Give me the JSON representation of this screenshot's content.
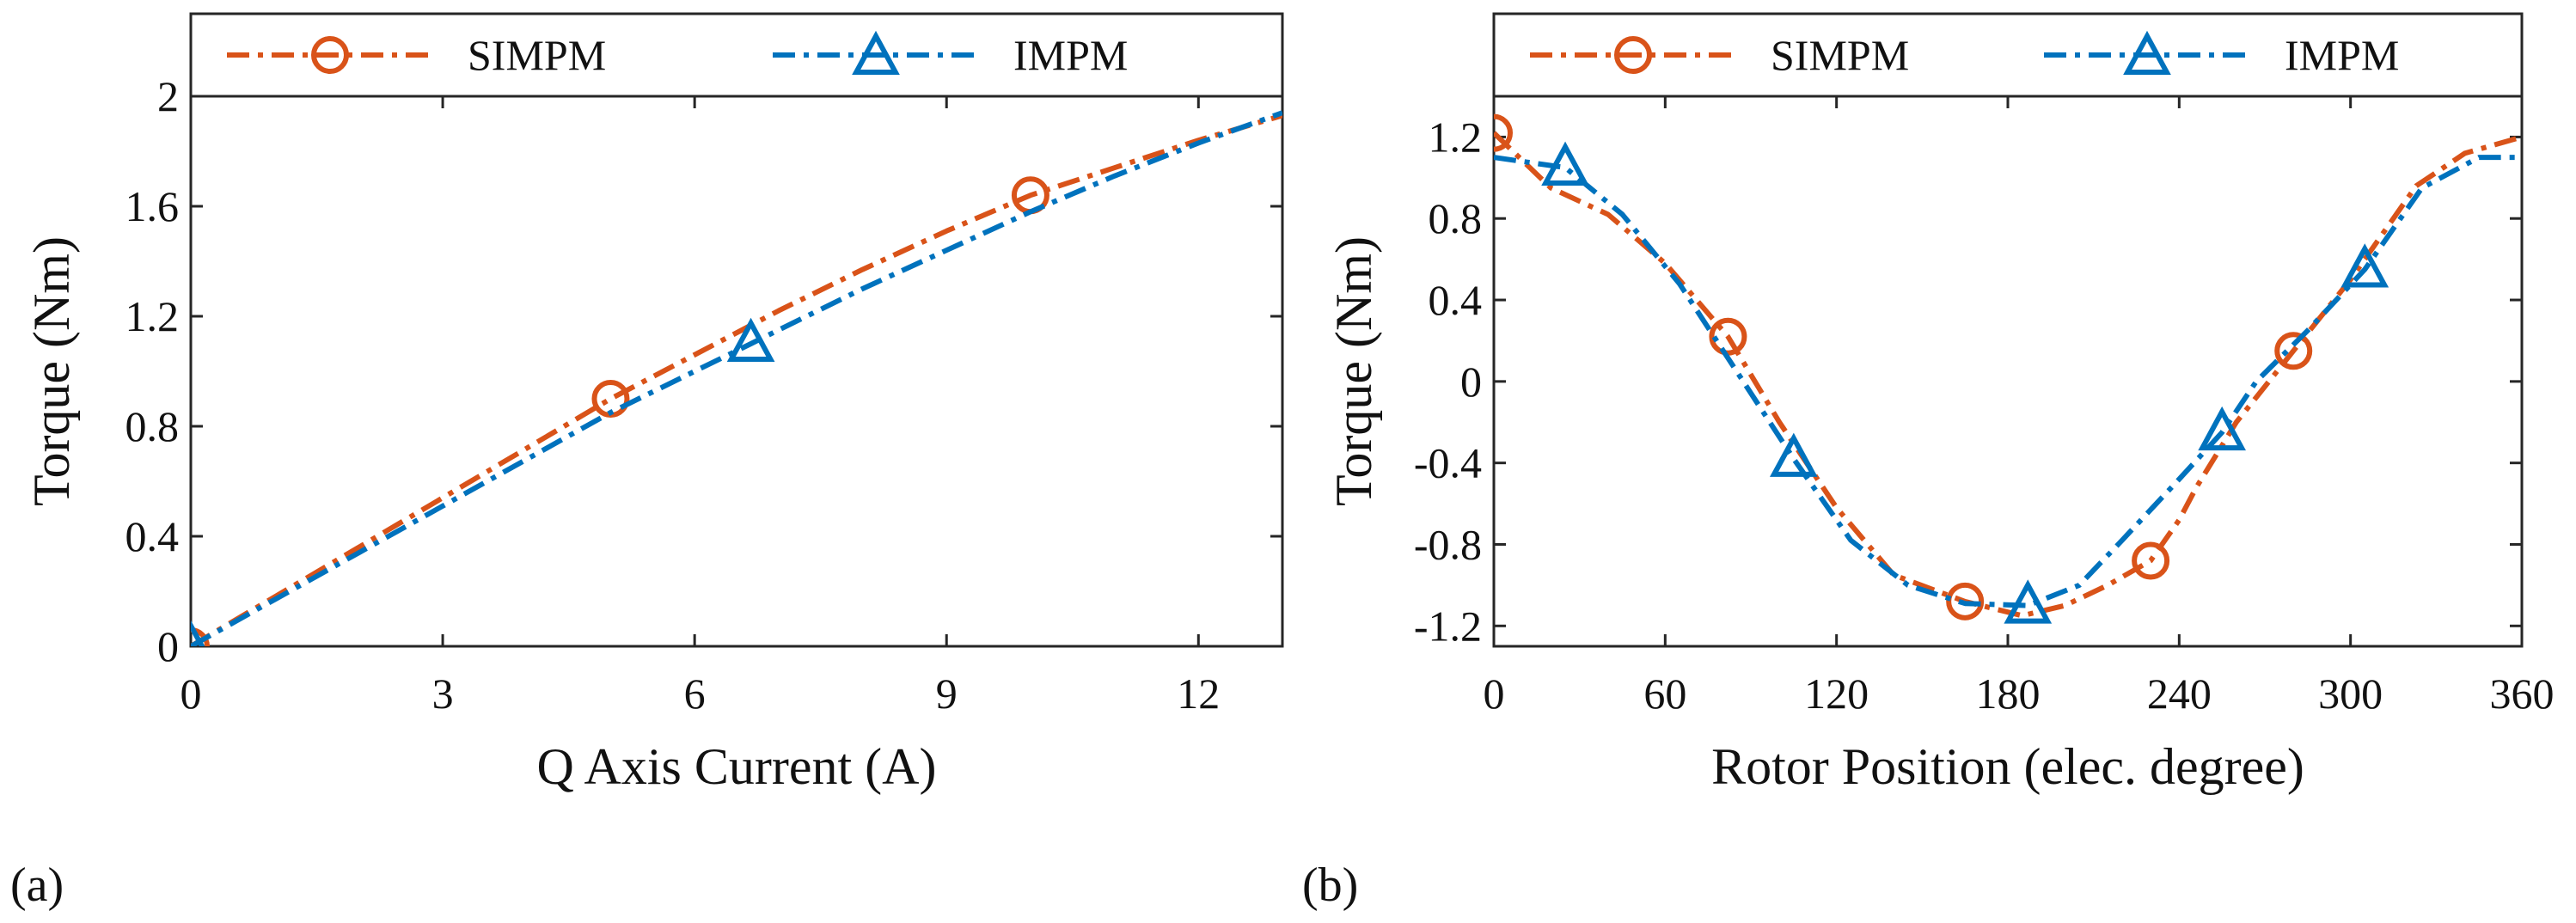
{
  "colors": {
    "simpm": "#D95319",
    "impm": "#0072BD",
    "axis": "#262626"
  },
  "chart_data": [
    {
      "type": "line",
      "panel": "(a)",
      "xlabel": "Q Axis Current (A)",
      "ylabel": "Torque (Nm)",
      "xlim": [
        0,
        13
      ],
      "ylim": [
        0,
        2.0
      ],
      "xticks": [
        0,
        3,
        6,
        9,
        12
      ],
      "yticks": [
        0,
        0.4,
        0.8,
        1.2,
        1.6,
        2
      ],
      "xtick_labels": [
        "0",
        "3",
        "6",
        "9",
        "12"
      ],
      "ytick_labels": [
        "0",
        "0.4",
        "0.8",
        "1.2",
        "1.6",
        "2"
      ],
      "legend": {
        "placement": "top",
        "entries": [
          "SIMPM",
          "IMPM"
        ]
      },
      "series": [
        {
          "name": "SIMPM",
          "color": "#D95319",
          "marker": "circle",
          "marker_indices": [
            0,
            5,
            10
          ],
          "x": [
            0,
            1,
            2,
            3,
            4,
            5,
            6,
            7,
            8,
            9,
            10,
            11,
            12,
            13
          ],
          "y": [
            0,
            0.18,
            0.36,
            0.54,
            0.72,
            0.9,
            1.06,
            1.22,
            1.37,
            1.51,
            1.64,
            1.74,
            1.84,
            1.93
          ]
        },
        {
          "name": "IMPM",
          "color": "#0072BD",
          "marker": "triangle",
          "marker_indices": [
            0,
            7
          ],
          "x": [
            0,
            1,
            2,
            3,
            4,
            5,
            6,
            6.67,
            7,
            8,
            9,
            10,
            11,
            12,
            13
          ],
          "y": [
            0,
            0.17,
            0.34,
            0.51,
            0.68,
            0.85,
            1.0,
            1.1,
            1.15,
            1.3,
            1.44,
            1.58,
            1.71,
            1.83,
            1.94
          ]
        }
      ]
    },
    {
      "type": "line",
      "panel": "(b)",
      "xlabel": "Rotor Position (elec. degree)",
      "ylabel": "Torque (Nm)",
      "xlim": [
        0,
        360
      ],
      "ylim": [
        -1.3,
        1.4
      ],
      "xticks": [
        0,
        60,
        120,
        180,
        240,
        300,
        360
      ],
      "yticks": [
        -1.2,
        -0.8,
        -0.4,
        0,
        0.4,
        0.8,
        1.2
      ],
      "xtick_labels": [
        "0",
        "60",
        "120",
        "180",
        "240",
        "300",
        "360"
      ],
      "ytick_labels": [
        "-1.2",
        "-0.8",
        "-0.4",
        "0",
        "0.4",
        "0.8",
        "1.2"
      ],
      "legend": {
        "placement": "top",
        "entries": [
          "SIMPM",
          "IMPM"
        ]
      },
      "series": [
        {
          "name": "SIMPM",
          "color": "#D95319",
          "marker": "circle",
          "marker_indices": [
            0,
            4,
            8,
            12,
            16
          ],
          "x": [
            0,
            20,
            40,
            60,
            82,
            100,
            120,
            140,
            165,
            185,
            200,
            215,
            230,
            240,
            246,
            260,
            280,
            300,
            323,
            340,
            360
          ],
          "y": [
            1.22,
            0.95,
            0.82,
            0.58,
            0.22,
            -0.2,
            -0.62,
            -0.95,
            -1.08,
            -1.15,
            -1.1,
            -1.0,
            -0.88,
            -0.68,
            -0.52,
            -0.2,
            0.15,
            0.5,
            0.96,
            1.12,
            1.2
          ]
        },
        {
          "name": "IMPM",
          "color": "#0072BD",
          "marker": "triangle",
          "marker_indices": [
            1,
            5,
            9,
            13,
            16
          ],
          "x": [
            0,
            25,
            45,
            65,
            85,
            105,
            125,
            145,
            165,
            187,
            205,
            220,
            240,
            255,
            267,
            285,
            305,
            325,
            345,
            360
          ],
          "y": [
            1.1,
            1.05,
            0.82,
            0.48,
            0.05,
            -0.38,
            -0.78,
            -1.0,
            -1.09,
            -1.1,
            -1.0,
            -0.78,
            -0.48,
            -0.25,
            0.0,
            0.25,
            0.55,
            0.95,
            1.1,
            1.1
          ]
        }
      ]
    }
  ]
}
